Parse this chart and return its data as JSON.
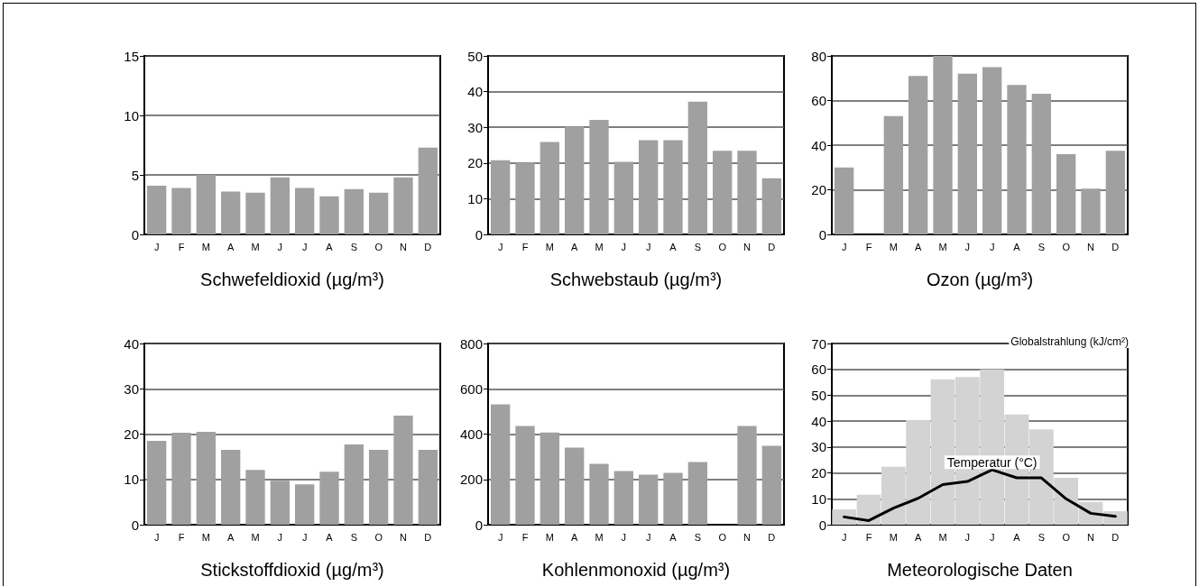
{
  "chart_data": [
    {
      "type": "bar",
      "xlabel": "Schwefeldioxid (µg/m³)",
      "categories": [
        "J",
        "F",
        "M",
        "A",
        "M",
        "J",
        "J",
        "A",
        "S",
        "O",
        "N",
        "D"
      ],
      "color": "#a0a0a0",
      "values": [
        4.1,
        3.9,
        5.0,
        3.6,
        3.5,
        4.8,
        3.9,
        3.2,
        3.8,
        3.5,
        4.8,
        7.3
      ],
      "ylim": [
        0,
        15
      ],
      "yticks": [
        0,
        5,
        10,
        15
      ],
      "grid": "y"
    },
    {
      "type": "bar",
      "xlabel": "Schwebstaub (µg/m³)",
      "categories": [
        "J",
        "F",
        "M",
        "A",
        "M",
        "J",
        "J",
        "A",
        "S",
        "O",
        "N",
        "D"
      ],
      "color": "#a0a0a0",
      "values": [
        20.8,
        20.1,
        25.9,
        30.2,
        32.1,
        20.3,
        26.4,
        26.4,
        37.2,
        23.4,
        23.4,
        15.7
      ],
      "ylim": [
        0,
        50
      ],
      "yticks": [
        0,
        10,
        20,
        30,
        40,
        50
      ],
      "grid": "y"
    },
    {
      "type": "bar",
      "xlabel": "Ozon (µg/m³)",
      "categories": [
        "J",
        "F",
        "M",
        "A",
        "M",
        "J",
        "J",
        "A",
        "S",
        "O",
        "N",
        "D"
      ],
      "color": "#a0a0a0",
      "values": [
        30,
        null,
        53,
        71,
        80,
        72,
        75,
        67,
        63,
        36,
        20.5,
        37.5
      ],
      "ylim": [
        0,
        80
      ],
      "yticks": [
        0,
        20,
        40,
        60,
        80
      ],
      "grid": "y"
    },
    {
      "type": "bar",
      "xlabel": "Stickstoffdioxid (µg/m³)",
      "categories": [
        "J",
        "F",
        "M",
        "A",
        "M",
        "J",
        "J",
        "A",
        "S",
        "O",
        "N",
        "D"
      ],
      "color": "#a0a0a0",
      "values": [
        18.5,
        20.3,
        20.5,
        16.5,
        12.1,
        9.7,
        8.9,
        11.7,
        17.7,
        16.5,
        24.1,
        16.5
      ],
      "ylim": [
        0,
        40
      ],
      "yticks": [
        0,
        10,
        20,
        30,
        40
      ],
      "grid": "y"
    },
    {
      "type": "bar",
      "xlabel": "Kohlenmonoxid (µg/m³)",
      "categories": [
        "J",
        "F",
        "M",
        "A",
        "M",
        "J",
        "J",
        "A",
        "S",
        "O",
        "N",
        "D"
      ],
      "color": "#a0a0a0",
      "values": [
        531,
        436,
        407,
        340,
        269,
        237,
        221,
        229,
        277,
        null,
        436,
        348
      ],
      "ylim": [
        0,
        800
      ],
      "yticks": [
        0,
        200,
        400,
        600,
        800
      ],
      "grid": "y"
    },
    {
      "type": "bar",
      "xlabel": "Meteorologische Daten",
      "categories": [
        "J",
        "F",
        "M",
        "A",
        "M",
        "J",
        "J",
        "A",
        "S",
        "O",
        "N",
        "D"
      ],
      "ylim": [
        0,
        70
      ],
      "yticks": [
        0,
        10,
        20,
        30,
        40,
        50,
        60,
        70
      ],
      "grid": "y",
      "series": [
        {
          "name": "Globalstrahlung (kJ/cm²)",
          "type": "bar",
          "color": "#d3d3d3",
          "values": [
            5.9,
            11.6,
            22.4,
            40.4,
            56.2,
            57,
            60,
            42.6,
            36.8,
            18.1,
            8.8,
            5.2
          ]
        },
        {
          "name": "Temperatur (°C)",
          "type": "line",
          "color": "#000000",
          "values": [
            3.0,
            1.6,
            6.4,
            10.2,
            15.5,
            16.7,
            21.2,
            18.1,
            18.1,
            10.0,
            4.4,
            3.2
          ]
        }
      ]
    }
  ]
}
